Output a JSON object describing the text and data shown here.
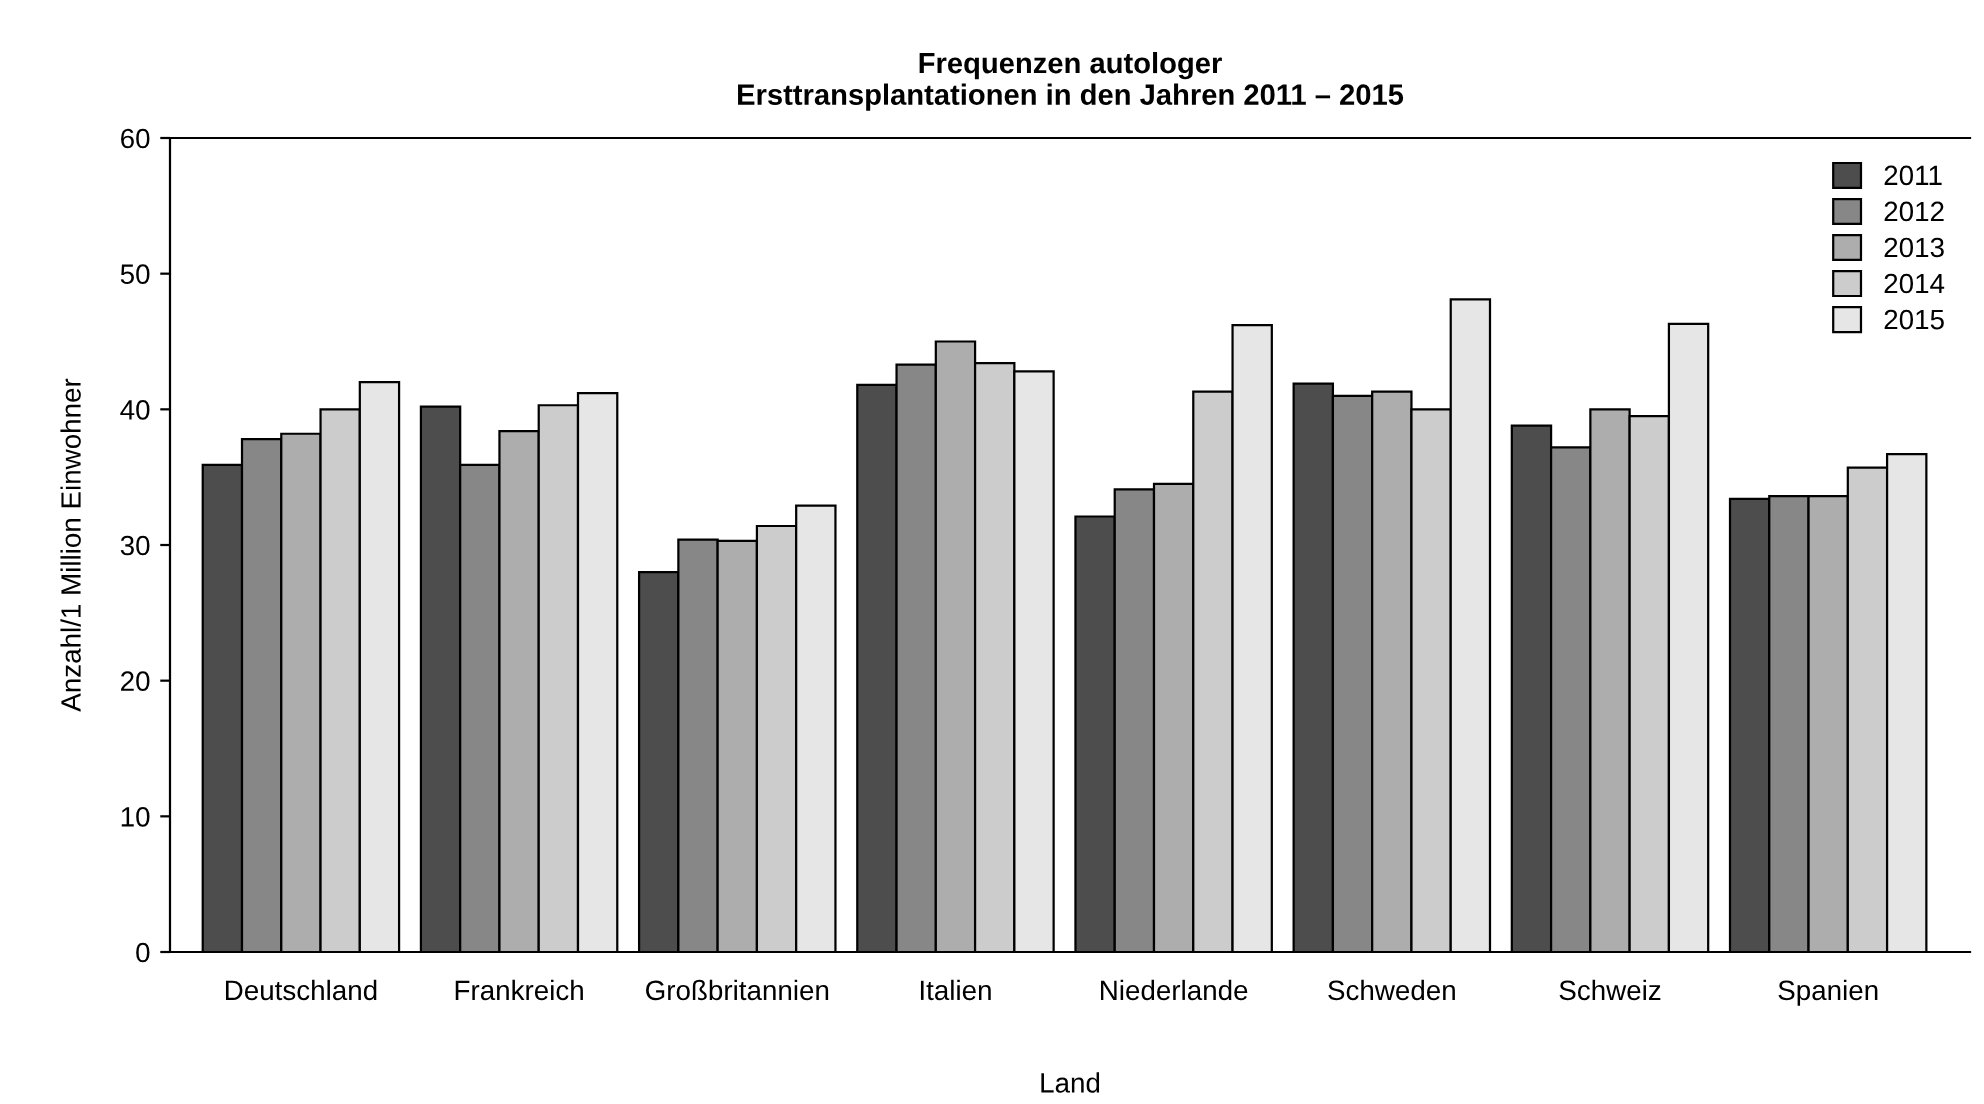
{
  "chart_data": {
    "type": "bar",
    "title": "Frequenzen autologer\nErsttransplantationen in den Jahren 2011 – 2015",
    "xlabel": "Land",
    "ylabel": "Anzahl/1 Million Einwohner",
    "categories": [
      "Deutschland",
      "Frankreich",
      "Großbritannien",
      "Italien",
      "Niederlande",
      "Schweden",
      "Schweiz",
      "Spanien"
    ],
    "series": [
      {
        "name": "2011",
        "color": "#4d4d4d",
        "values": [
          35.9,
          40.2,
          28.0,
          41.8,
          32.1,
          41.9,
          38.8,
          33.4
        ]
      },
      {
        "name": "2012",
        "color": "#878787",
        "values": [
          37.8,
          35.9,
          30.4,
          43.3,
          34.1,
          41.0,
          37.2,
          33.6
        ]
      },
      {
        "name": "2013",
        "color": "#adadad",
        "values": [
          38.2,
          38.4,
          30.3,
          45.0,
          34.5,
          41.3,
          40.0,
          33.6
        ]
      },
      {
        "name": "2014",
        "color": "#cccccc",
        "values": [
          40.0,
          40.3,
          31.4,
          43.4,
          41.3,
          40.0,
          39.5,
          35.7
        ]
      },
      {
        "name": "2015",
        "color": "#e6e6e6",
        "values": [
          42.0,
          41.2,
          32.9,
          42.8,
          46.2,
          48.1,
          46.3,
          36.7
        ]
      }
    ],
    "ylim": [
      0,
      60
    ],
    "yticks": [
      0,
      10,
      20,
      30,
      40,
      50,
      60
    ],
    "grid": false,
    "legend": "top right"
  }
}
